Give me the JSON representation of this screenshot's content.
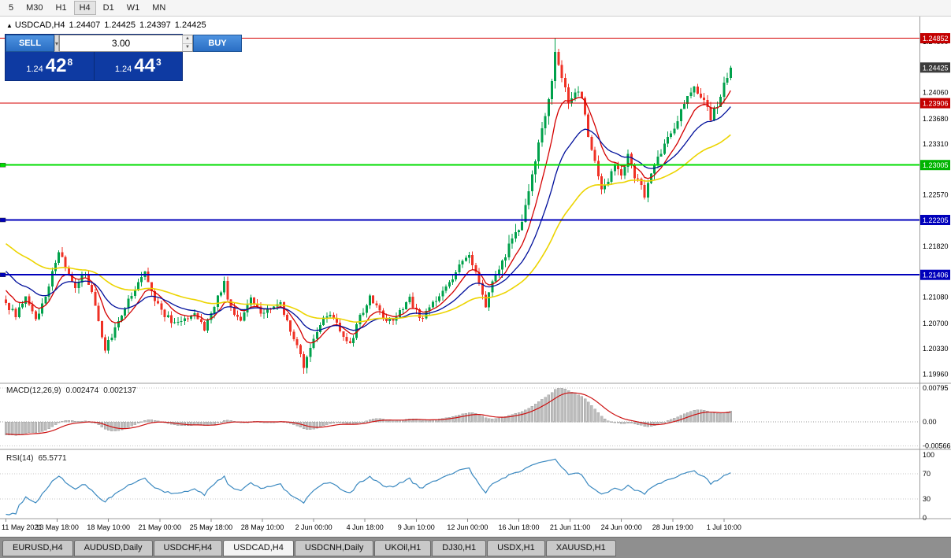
{
  "toolbar": {
    "timeframes": [
      "5",
      "M30",
      "H1",
      "H4",
      "D1",
      "W1",
      "MN"
    ],
    "active": "H4"
  },
  "chart_header": {
    "arrow": "▲",
    "symbol": "USDCAD,H4",
    "open": "1.24407",
    "high": "1.24425",
    "low": "1.24397",
    "close": "1.24425"
  },
  "trade_panel": {
    "sell_label": "SELL",
    "buy_label": "BUY",
    "volume": "3.00",
    "bid": {
      "prefix": "1.24",
      "big": "42",
      "sup": "8"
    },
    "ask": {
      "prefix": "1.24",
      "big": "44",
      "sup": "3"
    }
  },
  "price_axis": {
    "ticks": [
      "1.24800",
      "1.24060",
      "1.23680",
      "1.23310",
      "1.22570",
      "1.21820",
      "1.21080",
      "1.20700",
      "1.20330",
      "1.19960"
    ],
    "badges": [
      {
        "text": "1.24852",
        "price": 1.24852,
        "color": "#c40000"
      },
      {
        "text": "1.24425",
        "price": 1.24425,
        "color": "#3c3c3c"
      },
      {
        "text": "1.23906",
        "price": 1.23906,
        "color": "#c40000"
      },
      {
        "text": "1.23005",
        "price": 1.23005,
        "color": "#00b400"
      },
      {
        "text": "1.22205",
        "price": 1.22205,
        "color": "#0000bb"
      },
      {
        "text": "1.21406",
        "price": 1.21406,
        "color": "#0000bb"
      }
    ]
  },
  "price_lines": [
    {
      "price": 1.24852,
      "color": "#d40000",
      "width": 1,
      "marker": false
    },
    {
      "price": 1.23906,
      "color": "#d40000",
      "width": 1,
      "marker": false
    },
    {
      "price": 1.23005,
      "color": "#00dd00",
      "width": 2,
      "marker": true
    },
    {
      "price": 1.22205,
      "color": "#0000bb",
      "width": 2,
      "marker": true
    },
    {
      "price": 1.21406,
      "color": "#0000bb",
      "width": 2,
      "marker": true
    }
  ],
  "indicators": {
    "macd": {
      "label": "MACD(12,26,9)",
      "value1": "0.002474",
      "value2": "0.002137",
      "axis": [
        "0.00795",
        "0.00",
        "-0.00566"
      ]
    },
    "rsi": {
      "label": "RSI(14)",
      "value": "65.5771",
      "axis": [
        "100",
        "70",
        "30",
        "0"
      ]
    }
  },
  "time_axis": {
    "labels": [
      [
        "11 May 2021",
        0
      ],
      [
        "13 May 18:00",
        15.5
      ],
      [
        "18 May 10:00",
        31
      ],
      [
        "21 May 00:00",
        46.5
      ],
      [
        "25 May 18:00",
        62
      ],
      [
        "28 May 10:00",
        77.5
      ],
      [
        "2 Jun 00:00",
        93
      ],
      [
        "4 Jun 18:00",
        108.5
      ],
      [
        "9 Jun 10:00",
        124
      ],
      [
        "12 Jun 00:00",
        139.5
      ],
      [
        "16 Jun 18:00",
        155
      ],
      [
        "21 Jun 11:00",
        170.5
      ],
      [
        "24 Jun 00:00",
        186
      ],
      [
        "28 Jun 19:00",
        201.5
      ],
      [
        "1 Jul 10:00",
        217
      ]
    ]
  },
  "tabs": {
    "items": [
      "EURUSD,H4",
      "AUDUSD,Daily",
      "USDCHF,H4",
      "USDCAD,H4",
      "USDCNH,Daily",
      "UKOil,H1",
      "DJ30,H1",
      "USDX,H1",
      "XAUUSD,H1"
    ],
    "active_index": 3
  },
  "chart_data": {
    "type": "candlestick",
    "symbol": "USDCAD",
    "timeframe": "H4",
    "ylim": [
      1.1993,
      1.2495
    ],
    "colors": {
      "up": "#00a14b",
      "down": "#ef3125"
    },
    "price": {
      "warmup": 30,
      "visible_count": 220,
      "last_close": 1.24425,
      "spike_high_index": 166,
      "spike_high": 1.24852,
      "spike_low_index": 90,
      "spike_low": 1.19965,
      "anchors": [
        [
          -30,
          1.2255
        ],
        [
          -24,
          1.2225
        ],
        [
          -18,
          1.219
        ],
        [
          -12,
          1.216
        ],
        [
          -6,
          1.2125
        ],
        [
          0,
          1.21
        ],
        [
          3,
          1.208
        ],
        [
          6,
          1.211
        ],
        [
          9,
          1.2075
        ],
        [
          12,
          1.2105
        ],
        [
          16,
          1.2178
        ],
        [
          18,
          1.215
        ],
        [
          21,
          1.2118
        ],
        [
          24,
          1.2145
        ],
        [
          27,
          1.2095
        ],
        [
          30,
          1.2032
        ],
        [
          33,
          1.206
        ],
        [
          36,
          1.2095
        ],
        [
          39,
          1.212
        ],
        [
          42,
          1.2142
        ],
        [
          45,
          1.2105
        ],
        [
          48,
          1.2082
        ],
        [
          51,
          1.2068
        ],
        [
          54,
          1.2075
        ],
        [
          57,
          1.2088
        ],
        [
          60,
          1.206
        ],
        [
          64,
          1.2108
        ],
        [
          66,
          1.2128
        ],
        [
          68,
          1.209
        ],
        [
          71,
          1.2078
        ],
        [
          74,
          1.2108
        ],
        [
          77,
          1.2085
        ],
        [
          80,
          1.2092
        ],
        [
          83,
          1.2098
        ],
        [
          86,
          1.2062
        ],
        [
          88,
          1.2035
        ],
        [
          90,
          1.2008
        ],
        [
          92,
          1.2035
        ],
        [
          95,
          1.207
        ],
        [
          98,
          1.2082
        ],
        [
          101,
          1.206
        ],
        [
          104,
          1.204
        ],
        [
          107,
          1.2078
        ],
        [
          110,
          1.2108
        ],
        [
          113,
          1.2085
        ],
        [
          116,
          1.2072
        ],
        [
          119,
          1.2088
        ],
        [
          122,
          1.2108
        ],
        [
          125,
          1.2075
        ],
        [
          128,
          1.2092
        ],
        [
          131,
          1.2108
        ],
        [
          134,
          1.2128
        ],
        [
          137,
          1.2155
        ],
        [
          140,
          1.2172
        ],
        [
          143,
          1.213
        ],
        [
          145,
          1.2098
        ],
        [
          148,
          1.2142
        ],
        [
          151,
          1.2172
        ],
        [
          153,
          1.2188
        ],
        [
          155,
          1.2205
        ],
        [
          157,
          1.2238
        ],
        [
          159,
          1.2282
        ],
        [
          161,
          1.2328
        ],
        [
          163,
          1.2372
        ],
        [
          165,
          1.2428
        ],
        [
          166,
          1.2465
        ],
        [
          167,
          1.2452
        ],
        [
          168,
          1.2428
        ],
        [
          170,
          1.2392
        ],
        [
          172,
          1.2408
        ],
        [
          174,
          1.2398
        ],
        [
          176,
          1.2345
        ],
        [
          178,
          1.2302
        ],
        [
          180,
          1.2262
        ],
        [
          182,
          1.2278
        ],
        [
          184,
          1.2305
        ],
        [
          186,
          1.2288
        ],
        [
          188,
          1.2312
        ],
        [
          190,
          1.2285
        ],
        [
          193,
          1.2258
        ],
        [
          196,
          1.2305
        ],
        [
          199,
          1.2328
        ],
        [
          202,
          1.2355
        ],
        [
          205,
          1.2392
        ],
        [
          208,
          1.2412
        ],
        [
          211,
          1.2398
        ],
        [
          213,
          1.2368
        ],
        [
          215,
          1.2388
        ],
        [
          217,
          1.2415
        ],
        [
          219,
          1.24425
        ]
      ]
    },
    "moving_averages": [
      {
        "name": "ma-fast",
        "period": 9,
        "color": "#d40000"
      },
      {
        "name": "ma-mid",
        "period": 21,
        "color": "#000f9b"
      },
      {
        "name": "ma-slow",
        "period": 50,
        "color": "#ecd400"
      }
    ],
    "macd": {
      "fast": 12,
      "slow": 26,
      "signal": 9,
      "hist_color": "#bdbdbd",
      "hist_stroke": "#9a9a9a",
      "signal_color": "#cc1111"
    },
    "rsi": {
      "period": 14,
      "color": "#3b89c0",
      "levels": [
        70,
        30
      ]
    }
  }
}
